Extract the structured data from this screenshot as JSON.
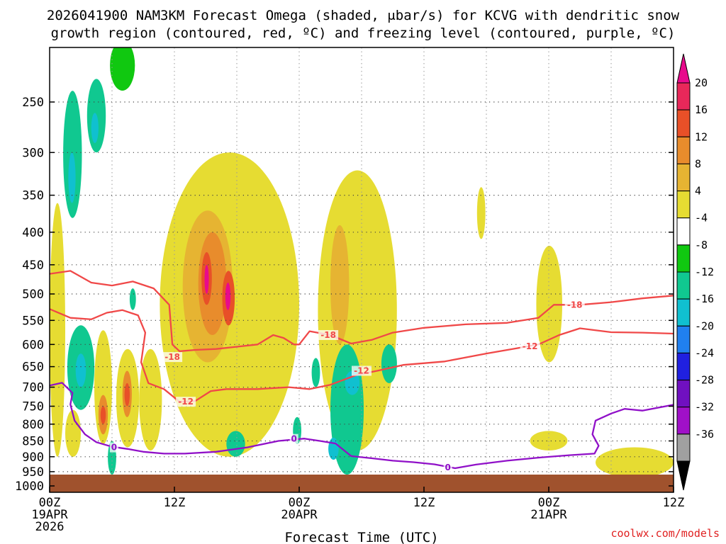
{
  "chart_data": {
    "type": "heatmap",
    "title_line1": "2026041900 NAM3KM Forecast Omega (shaded, μbar/s) for KCVG with dendritic snow",
    "title_line2": "growth region (contoured, red, ºC) and freezing level (contoured, purple, ºC)",
    "xlabel": "Forecast Time (UTC)",
    "ylabel": "",
    "xlim_hours": [
      0,
      60
    ],
    "ylim_hpa": [
      1000,
      200
    ],
    "x_ticks": [
      {
        "hour": 0,
        "lines": [
          "00Z",
          "19APR",
          "2026"
        ]
      },
      {
        "hour": 12,
        "lines": [
          "12Z"
        ]
      },
      {
        "hour": 24,
        "lines": [
          "00Z",
          "20APR"
        ]
      },
      {
        "hour": 36,
        "lines": [
          "12Z"
        ]
      },
      {
        "hour": 48,
        "lines": [
          "00Z",
          "21APR"
        ]
      },
      {
        "hour": 60,
        "lines": [
          "12Z"
        ]
      }
    ],
    "y_ticks": [
      250,
      300,
      350,
      400,
      450,
      500,
      550,
      600,
      650,
      700,
      750,
      800,
      850,
      900,
      950,
      1000
    ],
    "colorbar": {
      "levels": [
        -36,
        -32,
        -28,
        -24,
        -20,
        -16,
        -12,
        -8,
        -4,
        4,
        8,
        12,
        16,
        20
      ],
      "labels": [
        "20",
        "16",
        "12",
        "8",
        "4",
        "-4",
        "-8",
        "-12",
        "-16",
        "-20",
        "-24",
        "-28",
        "-32",
        "-36"
      ],
      "colors": [
        "#ffffff",
        "#a0a0a0",
        "#a010c8",
        "#7010c0",
        "#2020e0",
        "#2080f0",
        "#10c0d0",
        "#10c890",
        "#10c810",
        "#ffffff",
        "#e6dc32",
        "#e6b432",
        "#e88c2c",
        "#e85028",
        "#e8285a",
        "#e80a8c"
      ]
    },
    "series": [
      {
        "name": "Omega (shaded, μbar/s)",
        "cells": [
          {
            "t0": 0,
            "t1": 1.5,
            "p0": 360,
            "p1": 900,
            "value": 5
          },
          {
            "t0": 1.5,
            "t1": 3,
            "p0": 760,
            "p1": 900,
            "value": 6
          },
          {
            "t0": 1.3,
            "t1": 3.1,
            "p0": 240,
            "p1": 380,
            "value": -10
          },
          {
            "t0": 1.8,
            "t1": 2.5,
            "p0": 300,
            "p1": 360,
            "value": -14
          },
          {
            "t0": 3.6,
            "t1": 5.4,
            "p0": 230,
            "p1": 300,
            "value": -10
          },
          {
            "t0": 4,
            "t1": 4.7,
            "p0": 260,
            "p1": 290,
            "value": -14
          },
          {
            "t0": 5.8,
            "t1": 8.2,
            "p0": 200,
            "p1": 240,
            "value": -7
          },
          {
            "t0": 1.7,
            "t1": 4.3,
            "p0": 560,
            "p1": 760,
            "value": -9
          },
          {
            "t0": 2.5,
            "t1": 3.5,
            "p0": 620,
            "p1": 700,
            "value": -13
          },
          {
            "t0": 4.3,
            "t1": 6,
            "p0": 570,
            "p1": 860,
            "value": 7
          },
          {
            "t0": 4.7,
            "t1": 5.6,
            "p0": 720,
            "p1": 830,
            "value": 14
          },
          {
            "t0": 4.9,
            "t1": 5.4,
            "p0": 750,
            "p1": 800,
            "value": 19
          },
          {
            "t0": 5.6,
            "t1": 6.4,
            "p0": 850,
            "p1": 960,
            "value": -10
          },
          {
            "t0": 6.4,
            "t1": 8.6,
            "p0": 610,
            "p1": 870,
            "value": 7
          },
          {
            "t0": 7,
            "t1": 7.9,
            "p0": 660,
            "p1": 780,
            "value": 13
          },
          {
            "t0": 7.2,
            "t1": 7.7,
            "p0": 690,
            "p1": 750,
            "value": 18
          },
          {
            "t0": 7.7,
            "t1": 8.3,
            "p0": 490,
            "p1": 530,
            "value": -9
          },
          {
            "t0": 8.6,
            "t1": 10.8,
            "p0": 610,
            "p1": 880,
            "value": 5
          },
          {
            "t0": 10.6,
            "t1": 24,
            "p0": 300,
            "p1": 900,
            "value": 5
          },
          {
            "t0": 12.8,
            "t1": 17.6,
            "p0": 370,
            "p1": 640,
            "value": 9
          },
          {
            "t0": 14.3,
            "t1": 17,
            "p0": 400,
            "p1": 580,
            "value": 13
          },
          {
            "t0": 14.6,
            "t1": 15.6,
            "p0": 430,
            "p1": 520,
            "value": 17
          },
          {
            "t0": 14.9,
            "t1": 15.3,
            "p0": 450,
            "p1": 500,
            "value": 21
          },
          {
            "t0": 16.6,
            "t1": 17.8,
            "p0": 460,
            "p1": 560,
            "value": 17
          },
          {
            "t0": 16.9,
            "t1": 17.4,
            "p0": 480,
            "p1": 530,
            "value": 21
          },
          {
            "t0": 17,
            "t1": 18.8,
            "p0": 820,
            "p1": 900,
            "value": -9
          },
          {
            "t0": 25.8,
            "t1": 33.4,
            "p0": 320,
            "p1": 880,
            "value": 5
          },
          {
            "t0": 27,
            "t1": 28.8,
            "p0": 390,
            "p1": 600,
            "value": 9
          },
          {
            "t0": 23.4,
            "t1": 24.2,
            "p0": 780,
            "p1": 860,
            "value": -9
          },
          {
            "t0": 25.2,
            "t1": 26,
            "p0": 630,
            "p1": 700,
            "value": -9
          },
          {
            "t0": 27,
            "t1": 30.2,
            "p0": 600,
            "p1": 960,
            "value": -10
          },
          {
            "t0": 28.4,
            "t1": 29.8,
            "p0": 660,
            "p1": 720,
            "value": -14
          },
          {
            "t0": 26.8,
            "t1": 27.8,
            "p0": 840,
            "p1": 910,
            "value": -15
          },
          {
            "t0": 31.9,
            "t1": 33.4,
            "p0": 600,
            "p1": 690,
            "value": -9
          },
          {
            "t0": 41.1,
            "t1": 41.9,
            "p0": 340,
            "p1": 410,
            "value": 5
          },
          {
            "t0": 46.8,
            "t1": 49.3,
            "p0": 420,
            "p1": 640,
            "value": 5
          },
          {
            "t0": 46.2,
            "t1": 49.8,
            "p0": 820,
            "p1": 880,
            "value": 5
          },
          {
            "t0": 52.5,
            "t1": 60,
            "p0": 870,
            "p1": 970,
            "value": 5
          }
        ]
      },
      {
        "name": "Temperature isotherm (contoured, red, ºC)",
        "color": "#f04848",
        "contours": [
          {
            "value": -18,
            "label": "-18",
            "points": [
              [
                0,
                465
              ],
              [
                2,
                460
              ],
              [
                4,
                480
              ],
              [
                6,
                485
              ],
              [
                8,
                478
              ],
              [
                10,
                490
              ],
              [
                11.5,
                520
              ],
              [
                11.8,
                600
              ],
              [
                12.5,
                615
              ],
              [
                14,
                612
              ],
              [
                16,
                610
              ],
              [
                18,
                605
              ],
              [
                20,
                600
              ],
              [
                21.5,
                580
              ],
              [
                22.5,
                586
              ],
              [
                23.5,
                600
              ],
              [
                24,
                600
              ],
              [
                25,
                572
              ],
              [
                27,
                580
              ],
              [
                29,
                598
              ],
              [
                31,
                590
              ],
              [
                33,
                575
              ],
              [
                36,
                565
              ],
              [
                40,
                558
              ],
              [
                44,
                555
              ],
              [
                47,
                545
              ],
              [
                48.5,
                520
              ],
              [
                51,
                520
              ],
              [
                54,
                515
              ],
              [
                57,
                508
              ],
              [
                60,
                503
              ]
            ],
            "label_at": [
              [
                11.8,
                628
              ],
              [
                26.8,
                580
              ],
              [
                50.5,
                520
              ]
            ]
          },
          {
            "value": -12,
            "label": "-12",
            "points": [
              [
                0,
                528
              ],
              [
                2,
                545
              ],
              [
                4,
                548
              ],
              [
                5.5,
                535
              ],
              [
                7,
                530
              ],
              [
                8.5,
                540
              ],
              [
                9.2,
                575
              ],
              [
                8.8,
                640
              ],
              [
                9.5,
                690
              ],
              [
                11,
                705
              ],
              [
                12.5,
                738
              ],
              [
                14,
                736
              ],
              [
                15.5,
                710
              ],
              [
                17,
                705
              ],
              [
                20,
                705
              ],
              [
                23,
                700
              ],
              [
                25,
                705
              ],
              [
                27,
                694
              ],
              [
                29.5,
                670
              ],
              [
                31.5,
                660
              ],
              [
                34,
                646
              ],
              [
                38,
                638
              ],
              [
                42,
                620
              ],
              [
                45,
                608
              ],
              [
                47,
                600
              ],
              [
                49,
                580
              ],
              [
                51,
                566
              ],
              [
                54,
                574
              ],
              [
                57,
                575
              ],
              [
                60,
                577
              ]
            ],
            "label_at": [
              [
                13.1,
                738
              ],
              [
                30,
                660
              ],
              [
                46.2,
                604
              ]
            ]
          }
        ]
      },
      {
        "name": "Freezing level (contoured, purple, ºC)",
        "color": "#9010c8",
        "contours": [
          {
            "value": 0,
            "label": "0",
            "points": [
              [
                0,
                696
              ],
              [
                1.2,
                689
              ],
              [
                2.2,
                715
              ],
              [
                2,
                745
              ],
              [
                2.4,
                790
              ],
              [
                3.4,
                830
              ],
              [
                4.5,
                854
              ],
              [
                6,
                868
              ],
              [
                7.5,
                875
              ],
              [
                9,
                884
              ],
              [
                11,
                890
              ],
              [
                13,
                890
              ],
              [
                16,
                884
              ],
              [
                19,
                870
              ],
              [
                22,
                850
              ],
              [
                24.5,
                843
              ],
              [
                26,
                850
              ],
              [
                27.5,
                858
              ],
              [
                29,
                898
              ],
              [
                31,
                905
              ],
              [
                33,
                913
              ],
              [
                35,
                918
              ],
              [
                37,
                925
              ],
              [
                39,
                938
              ],
              [
                41,
                926
              ],
              [
                44,
                913
              ],
              [
                47,
                903
              ],
              [
                50,
                895
              ],
              [
                52.4,
                890
              ],
              [
                52.8,
                865
              ],
              [
                52.2,
                830
              ],
              [
                52.5,
                790
              ],
              [
                54,
                770
              ],
              [
                55.3,
                757
              ],
              [
                57,
                762
              ],
              [
                60,
                746
              ]
            ],
            "label_at": [
              [
                6.2,
                870
              ],
              [
                23.5,
                844
              ],
              [
                38.3,
                936
              ]
            ]
          }
        ]
      }
    ],
    "ground": {
      "from_hpa": 985,
      "to_hpa": 1000,
      "color": "#a0522d"
    }
  },
  "credit": "coolwx.com/models"
}
